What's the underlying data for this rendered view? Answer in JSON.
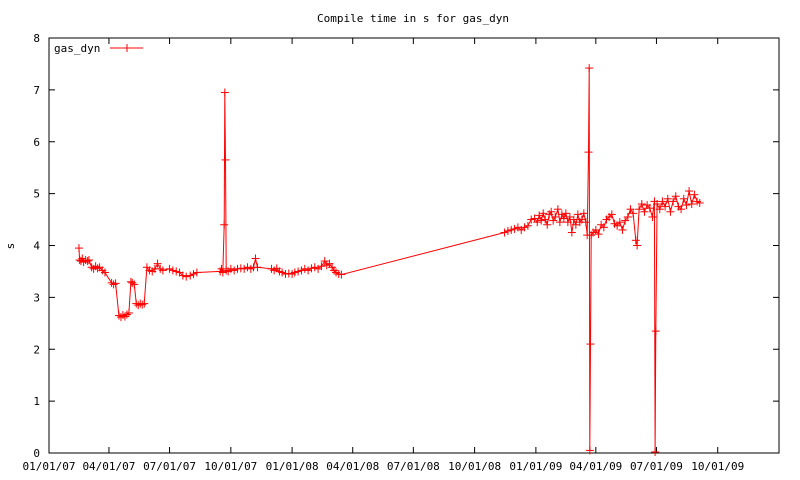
{
  "chart_data": {
    "type": "line",
    "title": "Compile time in s for gas_dyn",
    "xlabel": "",
    "ylabel": "s",
    "xlim": [
      "2007-01-01",
      "2010-01-01"
    ],
    "ylim": [
      0,
      8
    ],
    "grid": false,
    "legend_position": "top-left",
    "x_tick_labels": [
      "01/01/07",
      "04/01/07",
      "07/01/07",
      "10/01/07",
      "01/01/08",
      "04/01/08",
      "07/01/08",
      "10/01/08",
      "01/01/09",
      "04/01/09",
      "07/01/09",
      "10/01/09"
    ],
    "x_ticks": [
      "2007-01-01",
      "2007-04-01",
      "2007-07-01",
      "2007-10-01",
      "2008-01-01",
      "2008-04-01",
      "2008-07-01",
      "2008-10-01",
      "2009-01-01",
      "2009-04-01",
      "2009-07-01",
      "2009-10-01"
    ],
    "y_ticks": [
      0,
      1,
      2,
      3,
      4,
      5,
      6,
      7,
      8
    ],
    "series": [
      {
        "name": "gas_dyn",
        "color": "#ff0000",
        "marker": "plus",
        "points": [
          [
            "2007-02-15",
            3.95
          ],
          [
            "2007-02-16",
            3.72
          ],
          [
            "2007-02-18",
            3.7
          ],
          [
            "2007-02-20",
            3.75
          ],
          [
            "2007-02-22",
            3.68
          ],
          [
            "2007-02-25",
            3.72
          ],
          [
            "2007-02-28",
            3.7
          ],
          [
            "2007-03-02",
            3.72
          ],
          [
            "2007-03-06",
            3.58
          ],
          [
            "2007-03-09",
            3.55
          ],
          [
            "2007-03-12",
            3.6
          ],
          [
            "2007-03-15",
            3.56
          ],
          [
            "2007-03-18",
            3.58
          ],
          [
            "2007-03-22",
            3.52
          ],
          [
            "2007-03-26",
            3.48
          ],
          [
            "2007-04-05",
            3.28
          ],
          [
            "2007-04-08",
            3.25
          ],
          [
            "2007-04-11",
            3.27
          ],
          [
            "2007-04-16",
            2.65
          ],
          [
            "2007-04-19",
            2.62
          ],
          [
            "2007-04-22",
            2.66
          ],
          [
            "2007-04-25",
            2.63
          ],
          [
            "2007-04-28",
            2.67
          ],
          [
            "2007-05-01",
            2.7
          ],
          [
            "2007-05-04",
            3.3
          ],
          [
            "2007-05-06",
            3.28
          ],
          [
            "2007-05-09",
            3.25
          ],
          [
            "2007-05-12",
            2.88
          ],
          [
            "2007-05-15",
            2.85
          ],
          [
            "2007-05-18",
            2.88
          ],
          [
            "2007-05-21",
            2.86
          ],
          [
            "2007-05-24",
            2.88
          ],
          [
            "2007-05-28",
            3.58
          ],
          [
            "2007-06-01",
            3.52
          ],
          [
            "2007-06-05",
            3.5
          ],
          [
            "2007-06-09",
            3.55
          ],
          [
            "2007-06-13",
            3.65
          ],
          [
            "2007-06-17",
            3.55
          ],
          [
            "2007-06-21",
            3.52
          ],
          [
            "2007-07-01",
            3.55
          ],
          [
            "2007-07-06",
            3.52
          ],
          [
            "2007-07-11",
            3.5
          ],
          [
            "2007-07-16",
            3.48
          ],
          [
            "2007-07-21",
            3.42
          ],
          [
            "2007-07-26",
            3.4
          ],
          [
            "2007-08-01",
            3.42
          ],
          [
            "2007-08-06",
            3.45
          ],
          [
            "2007-08-11",
            3.48
          ],
          [
            "2007-09-15",
            3.5
          ],
          [
            "2007-09-17",
            3.55
          ],
          [
            "2007-09-19",
            3.48
          ],
          [
            "2007-09-21",
            4.4
          ],
          [
            "2007-09-22",
            6.95
          ],
          [
            "2007-09-23",
            5.65
          ],
          [
            "2007-09-24",
            3.52
          ],
          [
            "2007-09-27",
            3.5
          ],
          [
            "2007-10-01",
            3.55
          ],
          [
            "2007-10-06",
            3.52
          ],
          [
            "2007-10-11",
            3.55
          ],
          [
            "2007-10-16",
            3.56
          ],
          [
            "2007-10-21",
            3.55
          ],
          [
            "2007-10-26",
            3.58
          ],
          [
            "2007-10-31",
            3.55
          ],
          [
            "2007-11-04",
            3.58
          ],
          [
            "2007-11-07",
            3.75
          ],
          [
            "2007-11-10",
            3.58
          ],
          [
            "2007-12-01",
            3.55
          ],
          [
            "2007-12-05",
            3.52
          ],
          [
            "2007-12-09",
            3.56
          ],
          [
            "2007-12-13",
            3.5
          ],
          [
            "2007-12-17",
            3.48
          ],
          [
            "2007-12-22",
            3.45
          ],
          [
            "2007-12-27",
            3.46
          ],
          [
            "2008-01-01",
            3.45
          ],
          [
            "2008-01-05",
            3.48
          ],
          [
            "2008-01-10",
            3.5
          ],
          [
            "2008-01-15",
            3.52
          ],
          [
            "2008-01-20",
            3.55
          ],
          [
            "2008-01-25",
            3.52
          ],
          [
            "2008-01-30",
            3.56
          ],
          [
            "2008-02-04",
            3.58
          ],
          [
            "2008-02-09",
            3.55
          ],
          [
            "2008-02-14",
            3.6
          ],
          [
            "2008-02-19",
            3.7
          ],
          [
            "2008-02-22",
            3.62
          ],
          [
            "2008-02-26",
            3.65
          ],
          [
            "2008-03-01",
            3.58
          ],
          [
            "2008-03-04",
            3.52
          ],
          [
            "2008-03-07",
            3.48
          ],
          [
            "2008-03-11",
            3.45
          ],
          [
            "2008-03-15",
            3.44
          ],
          [
            "2008-11-15",
            4.25
          ],
          [
            "2008-11-20",
            4.28
          ],
          [
            "2008-11-25",
            4.3
          ],
          [
            "2008-11-30",
            4.32
          ],
          [
            "2008-12-05",
            4.35
          ],
          [
            "2008-12-10",
            4.3
          ],
          [
            "2008-12-15",
            4.35
          ],
          [
            "2008-12-20",
            4.38
          ],
          [
            "2008-12-25",
            4.5
          ],
          [
            "2008-12-30",
            4.52
          ],
          [
            "2009-01-03",
            4.45
          ],
          [
            "2009-01-06",
            4.58
          ],
          [
            "2009-01-09",
            4.48
          ],
          [
            "2009-01-12",
            4.62
          ],
          [
            "2009-01-15",
            4.5
          ],
          [
            "2009-01-18",
            4.4
          ],
          [
            "2009-01-21",
            4.6
          ],
          [
            "2009-01-24",
            4.65
          ],
          [
            "2009-01-27",
            4.48
          ],
          [
            "2009-01-30",
            4.55
          ],
          [
            "2009-02-03",
            4.7
          ],
          [
            "2009-02-06",
            4.45
          ],
          [
            "2009-02-09",
            4.6
          ],
          [
            "2009-02-12",
            4.52
          ],
          [
            "2009-02-15",
            4.62
          ],
          [
            "2009-02-18",
            4.45
          ],
          [
            "2009-02-21",
            4.55
          ],
          [
            "2009-02-24",
            4.25
          ],
          [
            "2009-02-27",
            4.5
          ],
          [
            "2009-03-02",
            4.4
          ],
          [
            "2009-03-05",
            4.6
          ],
          [
            "2009-03-08",
            4.45
          ],
          [
            "2009-03-11",
            4.5
          ],
          [
            "2009-03-14",
            4.62
          ],
          [
            "2009-03-17",
            4.45
          ],
          [
            "2009-03-19",
            4.2
          ],
          [
            "2009-03-21",
            5.8
          ],
          [
            "2009-03-22",
            7.42
          ],
          [
            "2009-03-23",
            0.05
          ],
          [
            "2009-03-24",
            2.1
          ],
          [
            "2009-03-25",
            4.2
          ],
          [
            "2009-03-28",
            4.25
          ],
          [
            "2009-04-01",
            4.3
          ],
          [
            "2009-04-05",
            4.22
          ],
          [
            "2009-04-09",
            4.4
          ],
          [
            "2009-04-13",
            4.35
          ],
          [
            "2009-04-17",
            4.5
          ],
          [
            "2009-04-21",
            4.55
          ],
          [
            "2009-04-25",
            4.6
          ],
          [
            "2009-04-29",
            4.42
          ],
          [
            "2009-05-03",
            4.38
          ],
          [
            "2009-05-07",
            4.45
          ],
          [
            "2009-05-11",
            4.3
          ],
          [
            "2009-05-15",
            4.48
          ],
          [
            "2009-05-19",
            4.55
          ],
          [
            "2009-05-23",
            4.7
          ],
          [
            "2009-05-27",
            4.62
          ],
          [
            "2009-05-31",
            4.1
          ],
          [
            "2009-06-02",
            4.0
          ],
          [
            "2009-06-05",
            4.7
          ],
          [
            "2009-06-09",
            4.8
          ],
          [
            "2009-06-13",
            4.65
          ],
          [
            "2009-06-17",
            4.78
          ],
          [
            "2009-06-21",
            4.72
          ],
          [
            "2009-06-25",
            4.55
          ],
          [
            "2009-06-28",
            4.85
          ],
          [
            "2009-06-29",
            0.02
          ],
          [
            "2009-06-30",
            2.35
          ],
          [
            "2009-07-02",
            4.8
          ],
          [
            "2009-07-06",
            4.7
          ],
          [
            "2009-07-10",
            4.85
          ],
          [
            "2009-07-14",
            4.75
          ],
          [
            "2009-07-18",
            4.9
          ],
          [
            "2009-07-22",
            4.65
          ],
          [
            "2009-07-26",
            4.85
          ],
          [
            "2009-07-30",
            4.95
          ],
          [
            "2009-08-03",
            4.75
          ],
          [
            "2009-08-07",
            4.7
          ],
          [
            "2009-08-11",
            4.9
          ],
          [
            "2009-08-15",
            4.78
          ],
          [
            "2009-08-19",
            5.05
          ],
          [
            "2009-08-23",
            4.8
          ],
          [
            "2009-08-27",
            4.98
          ],
          [
            "2009-08-31",
            4.85
          ],
          [
            "2009-09-04",
            4.82
          ]
        ]
      }
    ]
  }
}
